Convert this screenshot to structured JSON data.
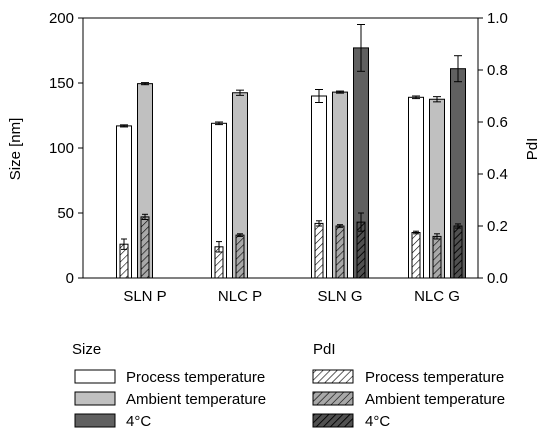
{
  "chart_data": {
    "type": "bar",
    "categories": [
      "SLN P",
      "NLC P",
      "SLN G",
      "NLC G"
    ],
    "left_axis": {
      "label": "Size [nm]",
      "ylim": [
        0,
        200
      ],
      "ticks": [
        "0",
        "50",
        "100",
        "150",
        "200"
      ]
    },
    "right_axis": {
      "label": "PdI",
      "ylim": [
        0.0,
        1.0
      ],
      "ticks": [
        "0.0",
        "0.2",
        "0.4",
        "0.6",
        "0.8",
        "1.0"
      ]
    },
    "size_series": [
      {
        "name": "Process temperature",
        "color": "#ffffff",
        "values": [
          117,
          119,
          140,
          139
        ],
        "errors": [
          0.8,
          1,
          5,
          1
        ]
      },
      {
        "name": "Ambient temperature",
        "color": "#c0c0c0",
        "values": [
          149.5,
          142.5,
          143,
          137.5
        ],
        "errors": [
          0.8,
          2,
          0.8,
          2
        ]
      },
      {
        "name": "4°C",
        "color": "#606060",
        "values": [
          null,
          null,
          177,
          161
        ],
        "errors": [
          null,
          null,
          18,
          10
        ]
      }
    ],
    "pdi_series": [
      {
        "name": "Process temperature",
        "values": [
          0.13,
          0.12,
          0.21,
          0.175
        ],
        "errors": [
          0.02,
          0.02,
          0.01,
          0.005
        ]
      },
      {
        "name": "Ambient temperature",
        "values": [
          0.235,
          0.165,
          0.2,
          0.16
        ],
        "errors": [
          0.01,
          0.005,
          0.005,
          0.01
        ]
      },
      {
        "name": "4°C",
        "values": [
          null,
          null,
          0.215,
          0.2
        ],
        "errors": [
          null,
          null,
          0.035,
          0.008
        ]
      }
    ],
    "legend": {
      "size_header": "Size",
      "pdi_header": "PdI",
      "size_items": [
        "Process temperature",
        "Ambient temperature",
        "4°C"
      ],
      "pdi_items": [
        "Process temperature",
        "Ambient temperature",
        "4°C"
      ]
    }
  }
}
